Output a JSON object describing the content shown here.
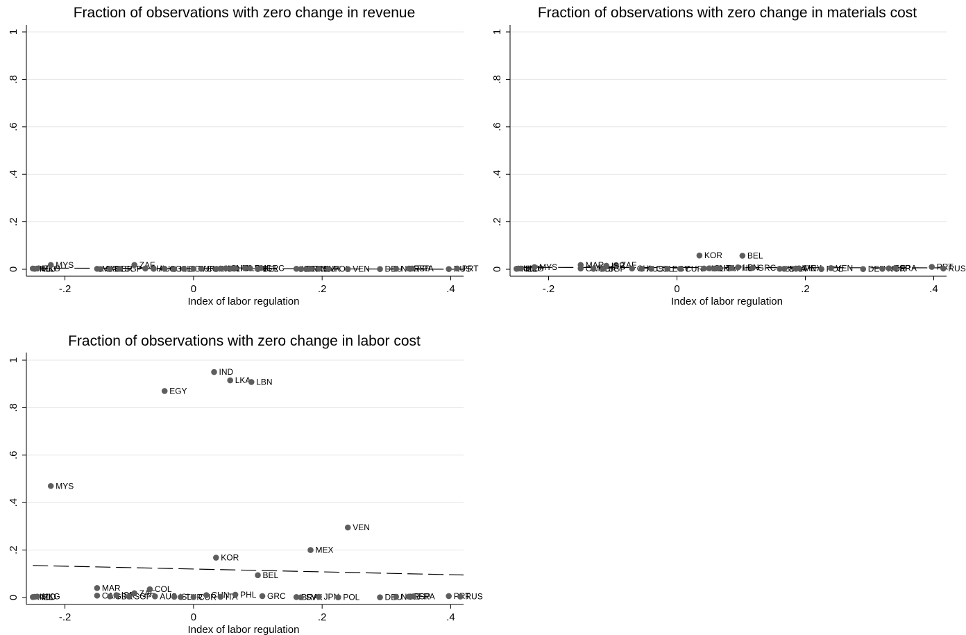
{
  "chart_data": [
    {
      "type": "scatter",
      "title": "Fraction of observations with zero change in revenue",
      "xlabel": "Index of labor regulation",
      "ylabel": "",
      "xlim": [
        -0.26,
        0.42
      ],
      "ylim": [
        0,
        1
      ],
      "xticks": [
        -0.2,
        0,
        0.2,
        0.4
      ],
      "xtick_labels": [
        "-.2",
        "0",
        ".2",
        ".4"
      ],
      "yticks": [
        0,
        0.2,
        0.4,
        0.6,
        0.8,
        1
      ],
      "ytick_labels": [
        "0",
        ".2",
        ".4",
        ".6",
        ".8",
        "1"
      ],
      "grid": true,
      "fit_line": {
        "style": "dashed",
        "x": [
          -0.25,
          0.42
        ],
        "y": [
          0.005,
          0.0
        ]
      },
      "points": [
        {
          "label": "NZL",
          "x": -0.25,
          "y": 0.003
        },
        {
          "label": "NLD",
          "x": -0.247,
          "y": 0.002
        },
        {
          "label": "HKG",
          "x": -0.243,
          "y": 0.003
        },
        {
          "label": "MYS",
          "x": -0.222,
          "y": 0.018
        },
        {
          "label": "MAR",
          "x": -0.15,
          "y": 0.002
        },
        {
          "label": "CAN",
          "x": -0.145,
          "y": 0.001
        },
        {
          "label": "GBR",
          "x": -0.13,
          "y": 0.001
        },
        {
          "label": "SGP",
          "x": -0.115,
          "y": 0.002
        },
        {
          "label": "ZAF",
          "x": -0.092,
          "y": 0.018
        },
        {
          "label": "CHL",
          "x": -0.075,
          "y": 0.003
        },
        {
          "label": "AUS",
          "x": -0.062,
          "y": 0.002
        },
        {
          "label": "COL",
          "x": -0.045,
          "y": 0.002
        },
        {
          "label": "ISL",
          "x": -0.03,
          "y": 0.001
        },
        {
          "label": "EGY",
          "x": -0.015,
          "y": 0.002
        },
        {
          "label": "TUR",
          "x": 0.0,
          "y": 0.002
        },
        {
          "label": "CUR",
          "x": 0.012,
          "y": 0.002
        },
        {
          "label": "KOR",
          "x": 0.035,
          "y": 0.001
        },
        {
          "label": "IND",
          "x": 0.042,
          "y": 0.003
        },
        {
          "label": "CHN",
          "x": 0.05,
          "y": 0.004
        },
        {
          "label": "LKA",
          "x": 0.058,
          "y": 0.003
        },
        {
          "label": "ITA",
          "x": 0.065,
          "y": 0.004
        },
        {
          "label": "LBN",
          "x": 0.08,
          "y": 0.005
        },
        {
          "label": "PHL",
          "x": 0.088,
          "y": 0.004
        },
        {
          "label": "GRC",
          "x": 0.105,
          "y": 0.005
        },
        {
          "label": "BEL",
          "x": 0.1,
          "y": 0.001
        },
        {
          "label": "ISR",
          "x": 0.16,
          "y": 0.002
        },
        {
          "label": "BRA",
          "x": 0.167,
          "y": 0.001
        },
        {
          "label": "JPN",
          "x": 0.175,
          "y": 0.001
        },
        {
          "label": "MEX",
          "x": 0.183,
          "y": 0.002
        },
        {
          "label": "SVK",
          "x": 0.195,
          "y": 0.002
        },
        {
          "label": "POL",
          "x": 0.21,
          "y": 0.001
        },
        {
          "label": "VEN",
          "x": 0.24,
          "y": 0.001
        },
        {
          "label": "DEU",
          "x": 0.29,
          "y": 0.001
        },
        {
          "label": "NOR",
          "x": 0.315,
          "y": 0.002
        },
        {
          "label": "ESP",
          "x": 0.335,
          "y": 0.003
        },
        {
          "label": "FRA",
          "x": 0.34,
          "y": 0.003
        },
        {
          "label": "RUS",
          "x": 0.397,
          "y": 0.001
        },
        {
          "label": "PRT",
          "x": 0.41,
          "y": 0.003
        }
      ]
    },
    {
      "type": "scatter",
      "title": "Fraction of observations with zero change in materials cost",
      "xlabel": "Index of labor regulation",
      "ylabel": "",
      "xlim": [
        -0.26,
        0.42
      ],
      "ylim": [
        0,
        1
      ],
      "xticks": [
        -0.2,
        0,
        0.2,
        0.4
      ],
      "xtick_labels": [
        "-.2",
        "0",
        ".2",
        ".4"
      ],
      "yticks": [
        0,
        0.2,
        0.4,
        0.6,
        0.8,
        1
      ],
      "ytick_labels": [
        "0",
        ".2",
        ".4",
        ".6",
        ".8",
        "1"
      ],
      "grid": true,
      "fit_line": {
        "style": "dashed",
        "x": [
          -0.25,
          0.42
        ],
        "y": [
          0.008,
          0.006
        ]
      },
      "points": [
        {
          "label": "NZL",
          "x": -0.25,
          "y": 0.002
        },
        {
          "label": "NLD",
          "x": -0.247,
          "y": 0.003
        },
        {
          "label": "HKG",
          "x": -0.243,
          "y": 0.003
        },
        {
          "label": "MYS",
          "x": -0.222,
          "y": 0.009
        },
        {
          "label": "MAR",
          "x": -0.15,
          "y": 0.018
        },
        {
          "label": "CAN",
          "x": -0.15,
          "y": 0.003
        },
        {
          "label": "GBR",
          "x": -0.13,
          "y": 0.002
        },
        {
          "label": "SGP",
          "x": -0.115,
          "y": 0.002
        },
        {
          "label": "ZAF",
          "x": -0.095,
          "y": 0.017
        },
        {
          "label": "ISR",
          "x": -0.11,
          "y": 0.015
        },
        {
          "label": "CHL",
          "x": -0.07,
          "y": 0.003
        },
        {
          "label": "AUS",
          "x": -0.055,
          "y": 0.002
        },
        {
          "label": "COL",
          "x": -0.04,
          "y": 0.002
        },
        {
          "label": "EGY",
          "x": -0.015,
          "y": 0.002
        },
        {
          "label": "CUR",
          "x": 0.005,
          "y": 0.002
        },
        {
          "label": "KOR",
          "x": 0.035,
          "y": 0.058
        },
        {
          "label": "IND",
          "x": 0.042,
          "y": 0.003
        },
        {
          "label": "CHN",
          "x": 0.05,
          "y": 0.004
        },
        {
          "label": "LKA",
          "x": 0.058,
          "y": 0.003
        },
        {
          "label": "ITA",
          "x": 0.065,
          "y": 0.004
        },
        {
          "label": "PHL",
          "x": 0.085,
          "y": 0.005
        },
        {
          "label": "LBN",
          "x": 0.095,
          "y": 0.008
        },
        {
          "label": "BEL",
          "x": 0.102,
          "y": 0.057
        },
        {
          "label": "GRC",
          "x": 0.118,
          "y": 0.006
        },
        {
          "label": "SVK",
          "x": 0.16,
          "y": 0.002
        },
        {
          "label": "BRA",
          "x": 0.167,
          "y": 0.002
        },
        {
          "label": "JPN",
          "x": 0.185,
          "y": 0.003
        },
        {
          "label": "MEX",
          "x": 0.19,
          "y": 0.004
        },
        {
          "label": "POL",
          "x": 0.225,
          "y": 0.001
        },
        {
          "label": "VEN",
          "x": 0.24,
          "y": 0.005
        },
        {
          "label": "DEU",
          "x": 0.29,
          "y": 0.001
        },
        {
          "label": "NOR",
          "x": 0.32,
          "y": 0.002
        },
        {
          "label": "ESP",
          "x": 0.33,
          "y": 0.004
        },
        {
          "label": "FRA",
          "x": 0.34,
          "y": 0.005
        },
        {
          "label": "PRT",
          "x": 0.397,
          "y": 0.01
        },
        {
          "label": "RUS",
          "x": 0.415,
          "y": 0.003
        }
      ]
    },
    {
      "type": "scatter",
      "title": "Fraction of observations with zero change in labor cost",
      "xlabel": "Index of labor regulation",
      "ylabel": "",
      "xlim": [
        -0.26,
        0.42
      ],
      "ylim": [
        0,
        1
      ],
      "xticks": [
        -0.2,
        0,
        0.2,
        0.4
      ],
      "xtick_labels": [
        "-.2",
        "0",
        ".2",
        ".4"
      ],
      "yticks": [
        0,
        0.2,
        0.4,
        0.6,
        0.8,
        1
      ],
      "ytick_labels": [
        "0",
        ".2",
        ".4",
        ".6",
        ".8",
        "1"
      ],
      "grid": true,
      "fit_line": {
        "style": "dashed",
        "x": [
          -0.25,
          0.42
        ],
        "y": [
          0.135,
          0.095
        ]
      },
      "points": [
        {
          "label": "NZL",
          "x": -0.25,
          "y": 0.002
        },
        {
          "label": "NLD",
          "x": -0.247,
          "y": 0.003
        },
        {
          "label": "HKG",
          "x": -0.243,
          "y": 0.004
        },
        {
          "label": "MYS",
          "x": -0.222,
          "y": 0.47
        },
        {
          "label": "MAR",
          "x": -0.15,
          "y": 0.04
        },
        {
          "label": "CAN",
          "x": -0.15,
          "y": 0.008
        },
        {
          "label": "GBR",
          "x": -0.13,
          "y": 0.005
        },
        {
          "label": "ISR",
          "x": -0.12,
          "y": 0.01
        },
        {
          "label": "SGP",
          "x": -0.1,
          "y": 0.004
        },
        {
          "label": "ZAF",
          "x": -0.092,
          "y": 0.018
        },
        {
          "label": "COL",
          "x": -0.068,
          "y": 0.035
        },
        {
          "label": "EGY",
          "x": -0.045,
          "y": 0.87
        },
        {
          "label": "AUS",
          "x": -0.06,
          "y": 0.005
        },
        {
          "label": "ISL",
          "x": -0.03,
          "y": 0.003
        },
        {
          "label": "TUR",
          "x": -0.02,
          "y": 0.002
        },
        {
          "label": "CUR",
          "x": 0.0,
          "y": 0.002
        },
        {
          "label": "CHN",
          "x": 0.02,
          "y": 0.01
        },
        {
          "label": "IND",
          "x": 0.032,
          "y": 0.95
        },
        {
          "label": "KOR",
          "x": 0.035,
          "y": 0.168
        },
        {
          "label": "ITA",
          "x": 0.042,
          "y": 0.003
        },
        {
          "label": "LKA",
          "x": 0.057,
          "y": 0.915
        },
        {
          "label": "PHL",
          "x": 0.065,
          "y": 0.012
        },
        {
          "label": "LBN",
          "x": 0.09,
          "y": 0.908
        },
        {
          "label": "BEL",
          "x": 0.1,
          "y": 0.094
        },
        {
          "label": "GRC",
          "x": 0.107,
          "y": 0.006
        },
        {
          "label": "BRA",
          "x": 0.16,
          "y": 0.002
        },
        {
          "label": "SVK",
          "x": 0.167,
          "y": 0.001
        },
        {
          "label": "MEX",
          "x": 0.182,
          "y": 0.2
        },
        {
          "label": "JPN",
          "x": 0.195,
          "y": 0.003
        },
        {
          "label": "POL",
          "x": 0.225,
          "y": 0.001
        },
        {
          "label": "VEN",
          "x": 0.24,
          "y": 0.295
        },
        {
          "label": "DEU",
          "x": 0.29,
          "y": 0.001
        },
        {
          "label": "NOR",
          "x": 0.315,
          "y": 0.003
        },
        {
          "label": "ESP",
          "x": 0.335,
          "y": 0.004
        },
        {
          "label": "FRA",
          "x": 0.342,
          "y": 0.005
        },
        {
          "label": "PRT",
          "x": 0.397,
          "y": 0.006
        },
        {
          "label": "RUS",
          "x": 0.415,
          "y": 0.004
        }
      ]
    }
  ]
}
